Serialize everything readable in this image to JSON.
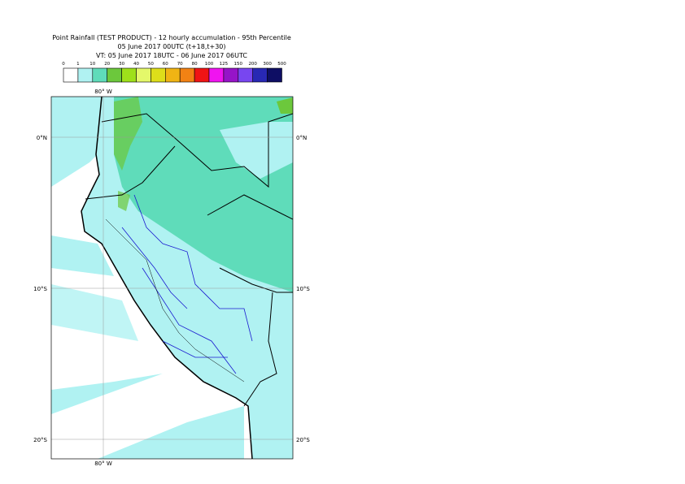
{
  "header": {
    "title": "Point Rainfall (TEST PRODUCT) - 12 hourly accumulation - 95th Percentile",
    "run": "05 June 2017 00UTC (t+18,t+30)",
    "valid": "VT: 05 June 2017 18UTC - 06 June 2017 06UTC"
  },
  "legend": {
    "levels": [
      0,
      1,
      10,
      20,
      30,
      40,
      50,
      60,
      70,
      80,
      100,
      125,
      150,
      200,
      300,
      500
    ],
    "colors": [
      "#ffffff",
      "#b0f2f2",
      "#5fdcba",
      "#6cc83c",
      "#9ee01a",
      "#e4f86a",
      "#dede1a",
      "#f0b414",
      "#f28214",
      "#f01414",
      "#f014f0",
      "#9614c8",
      "#7846f0",
      "#2828b4",
      "#0e0e64"
    ]
  },
  "map": {
    "lon_label_top": "80° W",
    "lon_label_bottom": "80° W",
    "lat_labels": [
      "0°N",
      "10°S",
      "20°S"
    ]
  }
}
